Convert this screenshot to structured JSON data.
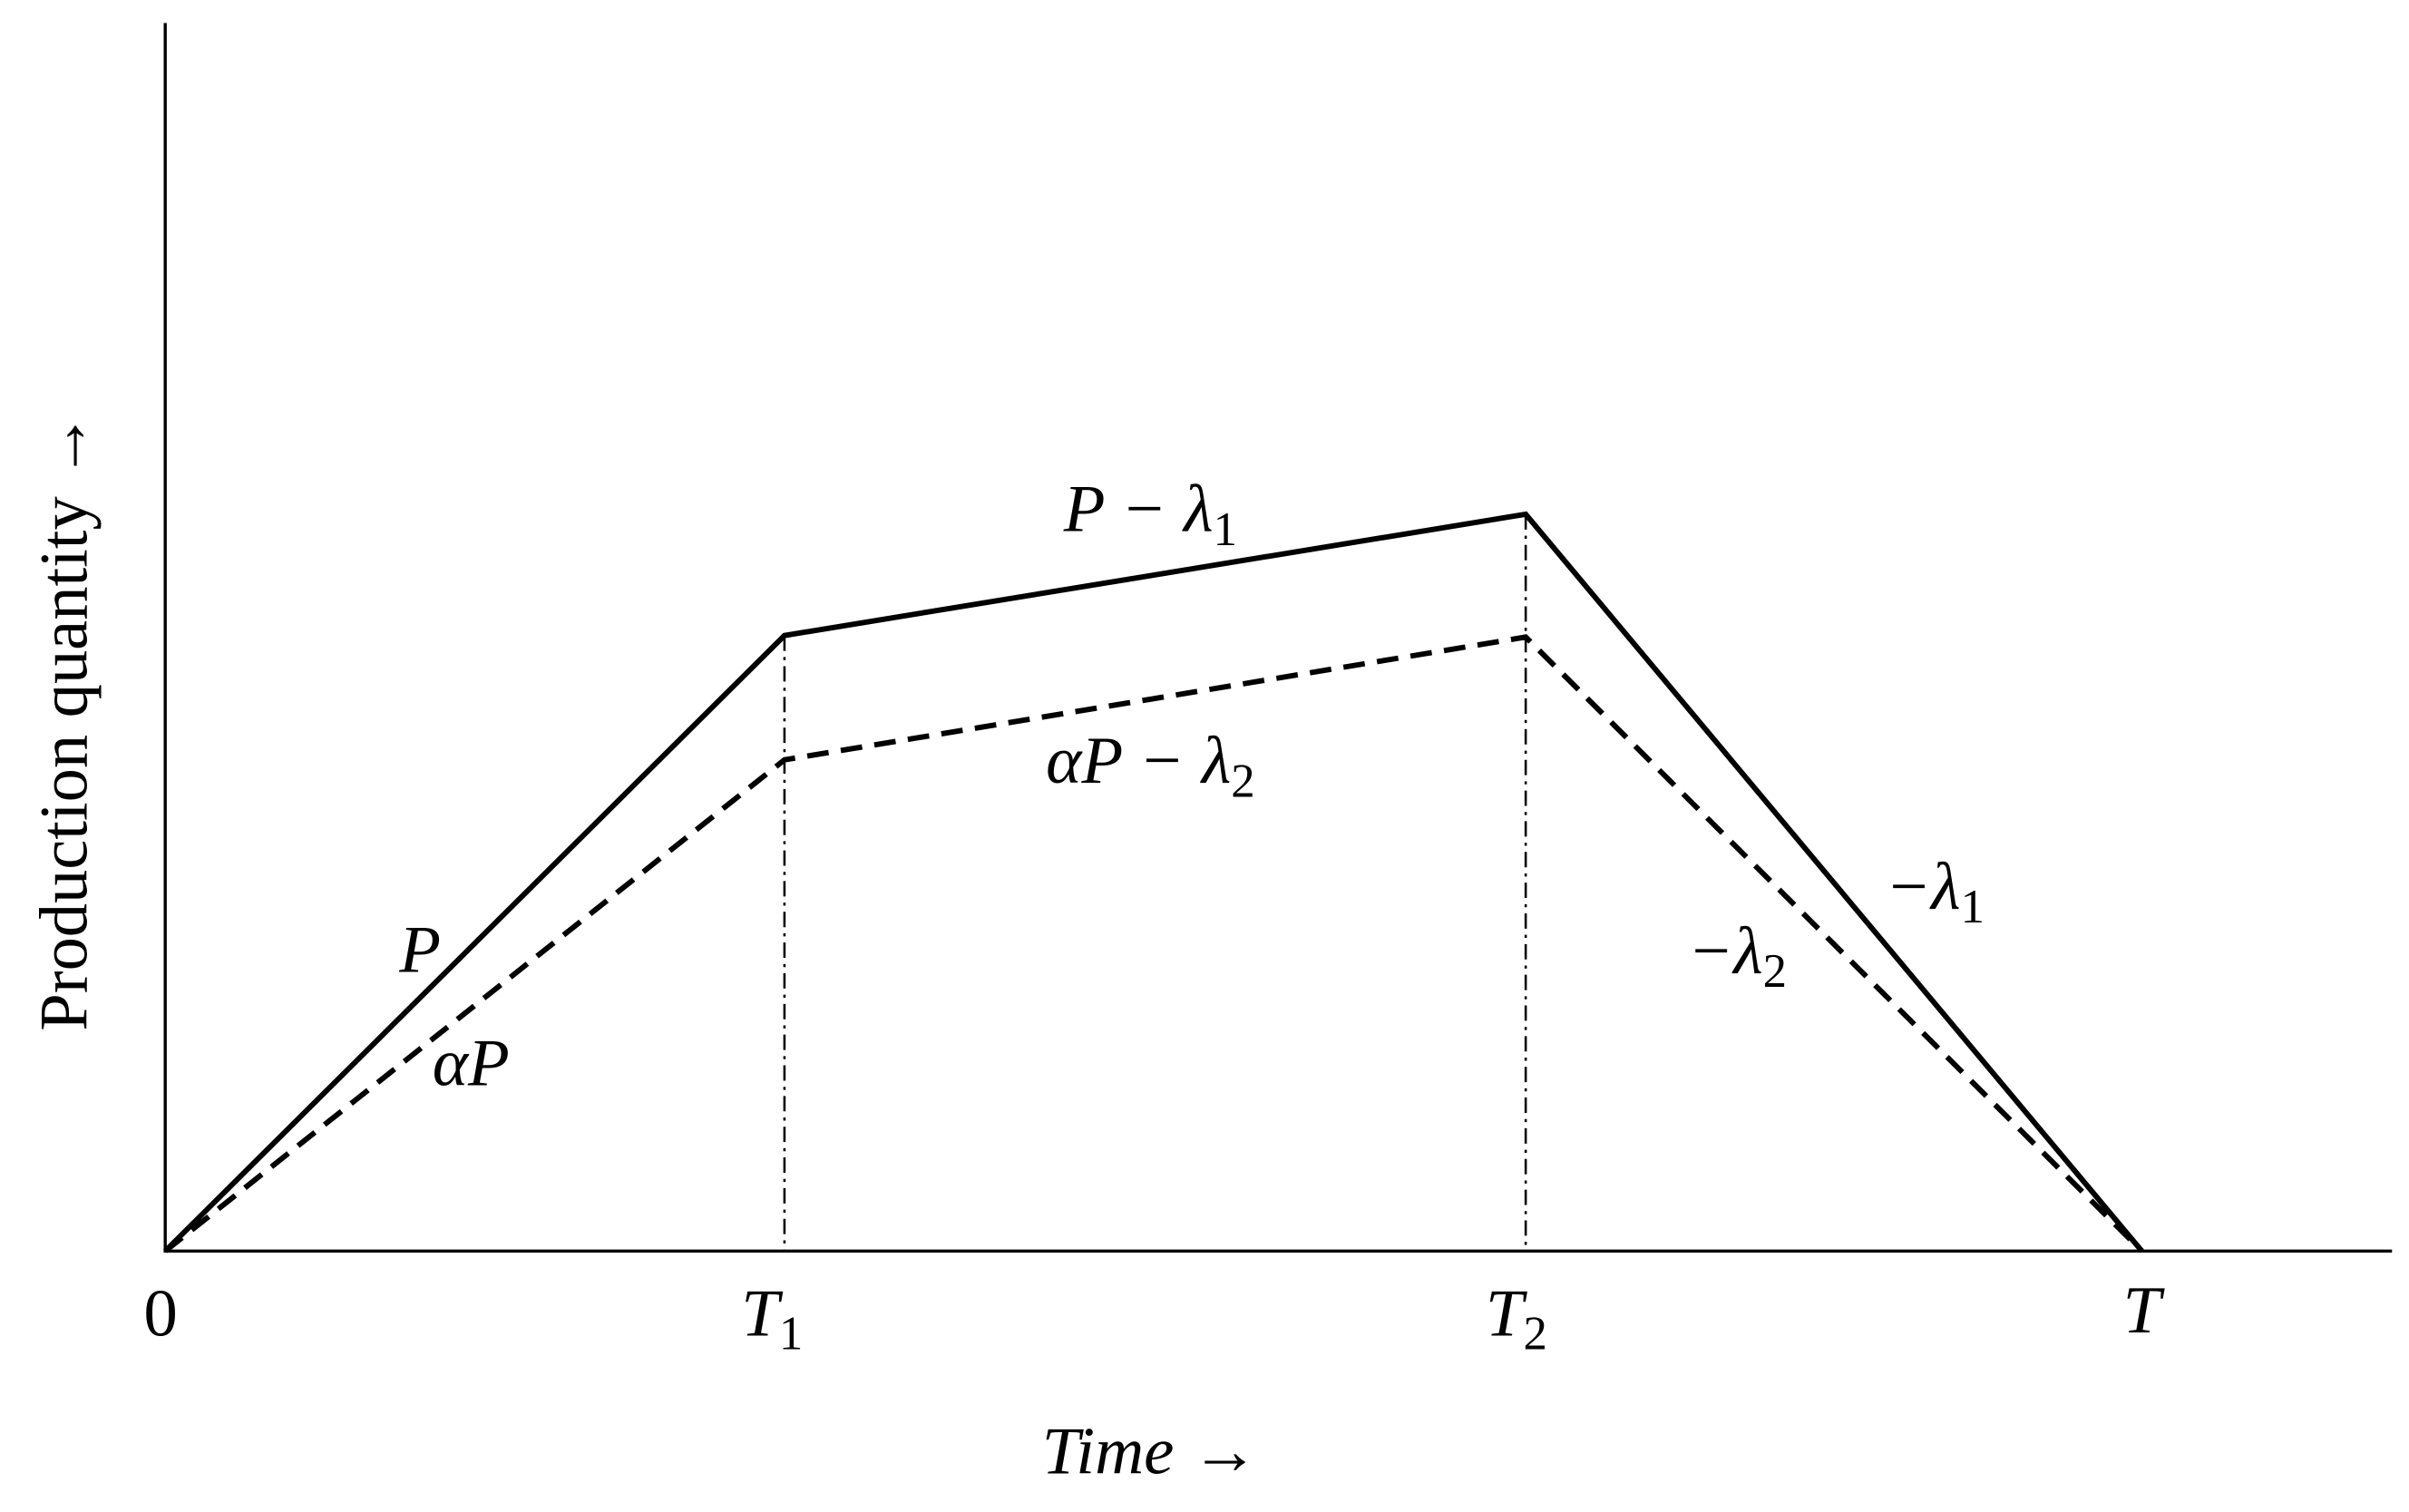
{
  "axes": {
    "x_label": "Time →",
    "y_label": "Production quantity →"
  },
  "ticks": [
    {
      "main": "0"
    },
    {
      "main": "T",
      "sub": "1"
    },
    {
      "main": "T",
      "sub": "2"
    },
    {
      "main": "T"
    }
  ],
  "curve_labels": [
    {
      "main": "P − λ",
      "sub": "1"
    },
    {
      "main": "αP − λ",
      "sub": "2"
    },
    {
      "main": "P"
    },
    {
      "main": "αP"
    },
    {
      "main": "−λ",
      "sub": "1"
    },
    {
      "main": "−λ",
      "sub": "2"
    }
  ]
}
